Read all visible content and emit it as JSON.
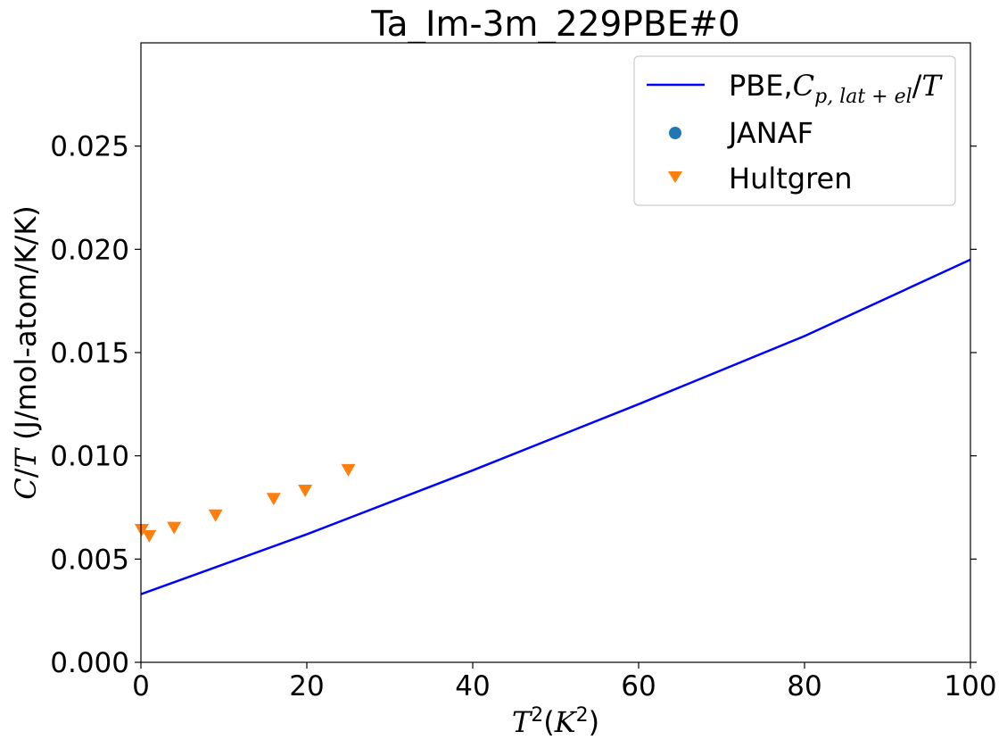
{
  "chart_data": {
    "type": "line",
    "title": "Ta_Im-3m_229PBE#0",
    "xlabel": "T²(K²)",
    "ylabel": "C/T (J/mol-atom/K/K)",
    "xlim": [
      0,
      100
    ],
    "ylim": [
      0,
      0.03
    ],
    "xticks": [
      0,
      20,
      40,
      60,
      80,
      100
    ],
    "xtick_labels": [
      "0",
      "20",
      "40",
      "60",
      "80",
      "100"
    ],
    "yticks": [
      0,
      0.005,
      0.01,
      0.015,
      0.02,
      0.025
    ],
    "ytick_labels": [
      "0.000",
      "0.005",
      "0.010",
      "0.015",
      "0.020",
      "0.025"
    ],
    "grid": false,
    "legend_position": "top-right",
    "series": [
      {
        "name": "PBE,Cp,lat+el/T",
        "kind": "line",
        "color": "#0000ff",
        "x": [
          0,
          20,
          40,
          60,
          80,
          100
        ],
        "y": [
          0.0033,
          0.0062,
          0.0093,
          0.0125,
          0.0158,
          0.0195
        ]
      },
      {
        "name": "JANAF",
        "kind": "scatter",
        "marker": "circle",
        "color": "#1f77b4",
        "x": [],
        "y": []
      },
      {
        "name": "Hultgren",
        "kind": "scatter",
        "marker": "triangle-down",
        "color": "#ff7f0e",
        "x": [
          0.1,
          1,
          4,
          9,
          16,
          19.8,
          25
        ],
        "y": [
          0.0064,
          0.0061,
          0.0065,
          0.0071,
          0.0079,
          0.0083,
          0.0093
        ]
      }
    ]
  }
}
